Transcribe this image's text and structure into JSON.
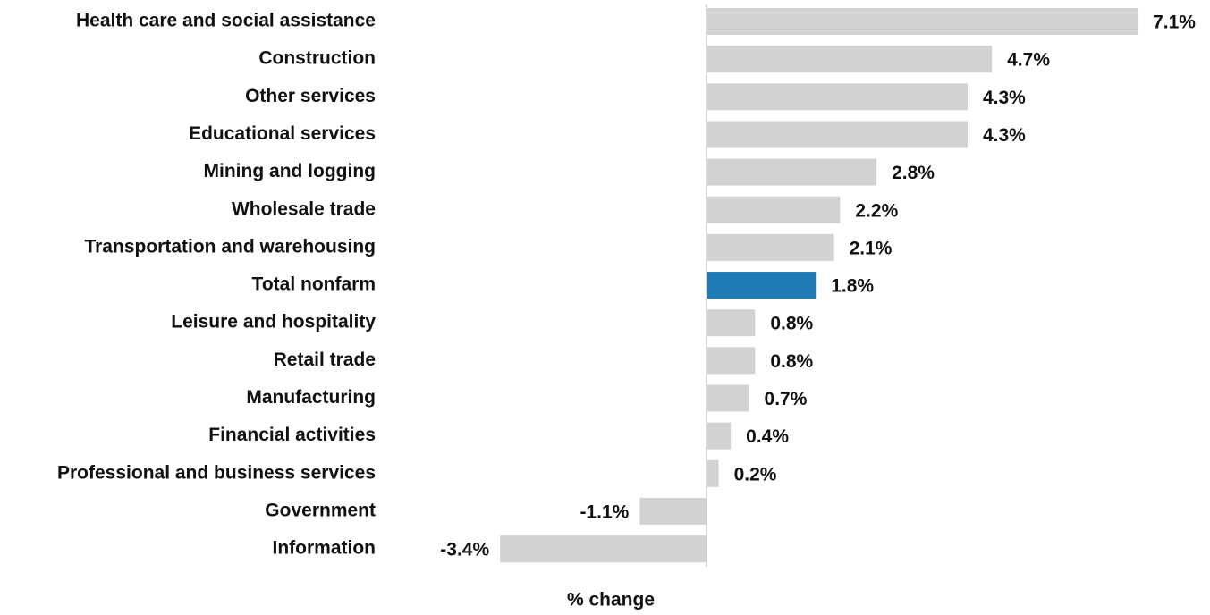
{
  "chart_data": {
    "type": "barh",
    "xlabel": "% change",
    "categories": [
      "Health care and social assistance",
      "Construction",
      "Other services",
      "Educational services",
      "Mining and logging",
      "Wholesale trade",
      "Transportation and warehousing",
      "Total nonfarm",
      "Leisure and hospitality",
      "Retail trade",
      "Manufacturing",
      "Financial activities",
      "Professional and business services",
      "Government",
      "Information"
    ],
    "values": [
      7.1,
      4.7,
      4.3,
      4.3,
      2.8,
      2.2,
      2.1,
      1.8,
      0.8,
      0.8,
      0.7,
      0.4,
      0.2,
      -1.1,
      -3.4
    ],
    "value_labels": [
      "7.1%",
      "4.7%",
      "4.3%",
      "4.3%",
      "2.8%",
      "2.2%",
      "2.1%",
      "1.8%",
      "0.8%",
      "0.8%",
      "0.7%",
      "0.4%",
      "0.2%",
      "-1.1%",
      "-3.4%"
    ],
    "colors": [
      "#d3d2d3",
      "#d3d2d3",
      "#d3d2d3",
      "#d3d2d3",
      "#d3d2d3",
      "#d3d2d3",
      "#d3d2d3",
      "#1f7bb4",
      "#d3d2d3",
      "#d3d2d3",
      "#d3d2d3",
      "#d3d2d3",
      "#d3d2d3",
      "#d3d2d3",
      "#d3d2d3"
    ],
    "xlim": [
      -5,
      8
    ]
  }
}
